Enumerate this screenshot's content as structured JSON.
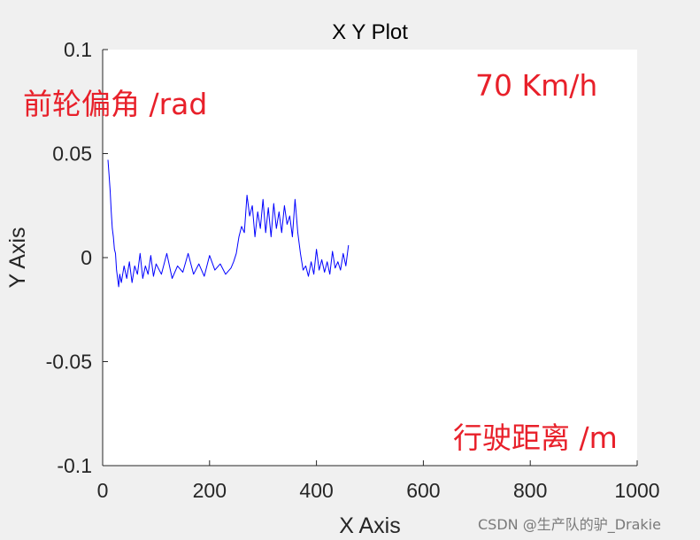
{
  "chart_data": {
    "type": "line",
    "title": "X Y Plot",
    "xlabel": "X Axis",
    "ylabel": "Y Axis",
    "xlim": [
      0,
      1000
    ],
    "ylim": [
      -0.1,
      0.1
    ],
    "xticks": [
      "0",
      "200",
      "400",
      "600",
      "800",
      "1000"
    ],
    "yticks": [
      "-0.1",
      "-0.05",
      "0",
      "0.05",
      "0.1"
    ],
    "grid": false,
    "line_color": "#0000ff",
    "series": [
      {
        "x": [
          10,
          12,
          14,
          16,
          18,
          20,
          22,
          24,
          26,
          28,
          30,
          32,
          35,
          40,
          45,
          50,
          55,
          60,
          65,
          70,
          75,
          80,
          85,
          90,
          95,
          100,
          110,
          120,
          130,
          140,
          150,
          160,
          170,
          180,
          190,
          200,
          210,
          220,
          230,
          240,
          245,
          250,
          255,
          260,
          265,
          270,
          275,
          280,
          285,
          290,
          295,
          300,
          305,
          310,
          315,
          320,
          325,
          330,
          335,
          340,
          345,
          350,
          355,
          360,
          365,
          370,
          375,
          380,
          385,
          390,
          395,
          400,
          405,
          410,
          415,
          420,
          425,
          430,
          435,
          440,
          445,
          450,
          455,
          460
        ],
        "y": [
          0.047,
          0.04,
          0.032,
          0.022,
          0.014,
          0.01,
          0.004,
          0.002,
          -0.006,
          -0.01,
          -0.014,
          -0.008,
          -0.012,
          -0.004,
          -0.01,
          -0.002,
          -0.012,
          -0.004,
          -0.008,
          0.002,
          -0.01,
          -0.004,
          -0.008,
          0.001,
          -0.009,
          -0.003,
          -0.008,
          0.002,
          -0.01,
          -0.004,
          -0.007,
          0.002,
          -0.008,
          -0.003,
          -0.009,
          0.001,
          -0.006,
          -0.003,
          -0.008,
          -0.005,
          -0.002,
          0.002,
          0.01,
          0.015,
          0.012,
          0.03,
          0.02,
          0.025,
          0.01,
          0.022,
          0.014,
          0.028,
          0.012,
          0.024,
          0.01,
          0.026,
          0.014,
          0.022,
          0.012,
          0.025,
          0.016,
          0.02,
          0.01,
          0.028,
          0.012,
          0.002,
          -0.006,
          -0.004,
          -0.009,
          -0.002,
          -0.008,
          0.004,
          -0.006,
          -0.001,
          -0.007,
          -0.002,
          -0.008,
          0.003,
          -0.005,
          -0.002,
          -0.006,
          0.002,
          -0.004,
          0.006
        ]
      }
    ],
    "annotations": [
      "前轮偏角 /rad",
      "70 Km/h",
      "行驶距离 /m"
    ]
  },
  "watermark": "CSDN @生产队的驴_Drakie"
}
